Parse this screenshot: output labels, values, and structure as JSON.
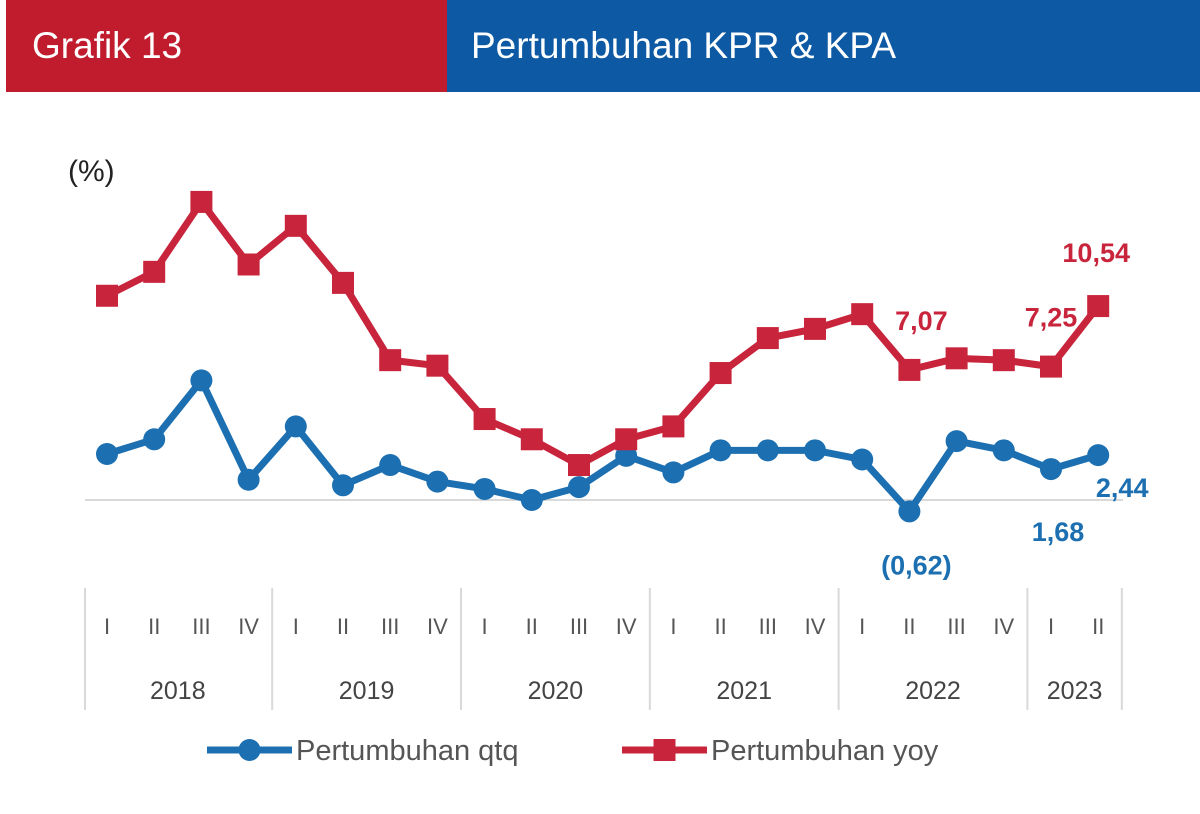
{
  "header": {
    "label": "Grafik 13",
    "title": "Pertumbuhan KPR & KPA"
  },
  "colors": {
    "header_red": "#c01c2e",
    "header_blue": "#0d59a3",
    "series_qtq": "#1c6fb0",
    "series_yoy": "#c8243c"
  },
  "chart_data": {
    "type": "line",
    "unit_label": "(%)",
    "quarters": [
      "I",
      "II",
      "III",
      "IV",
      "I",
      "II",
      "III",
      "IV",
      "I",
      "II",
      "III",
      "IV",
      "I",
      "II",
      "III",
      "IV",
      "I",
      "II",
      "III",
      "IV",
      "I",
      "II"
    ],
    "years": [
      {
        "label": "2018",
        "count": 4
      },
      {
        "label": "2019",
        "count": 4
      },
      {
        "label": "2020",
        "count": 4
      },
      {
        "label": "2021",
        "count": 4
      },
      {
        "label": "2022",
        "count": 4
      },
      {
        "label": "2023",
        "count": 2
      }
    ],
    "ylim": [
      -2,
      17
    ],
    "grid": false,
    "zero_line": true,
    "legend_position": "bottom",
    "series": [
      {
        "name": "Pertumbuhan qtq",
        "marker": "circle",
        "values": [
          2.5,
          3.3,
          6.5,
          1.1,
          4.0,
          0.8,
          1.9,
          1.0,
          0.6,
          0.0,
          0.7,
          2.4,
          1.5,
          2.7,
          2.7,
          2.7,
          2.2,
          -0.62,
          3.2,
          2.7,
          1.68,
          2.44
        ]
      },
      {
        "name": "Pertumbuhan yoy",
        "marker": "square",
        "values": [
          11.1,
          12.4,
          16.2,
          12.8,
          14.9,
          11.8,
          7.6,
          7.3,
          4.4,
          3.3,
          1.9,
          3.3,
          4.0,
          6.9,
          8.8,
          9.3,
          10.1,
          7.07,
          7.7,
          7.6,
          7.25,
          10.54
        ]
      }
    ],
    "annotations": [
      {
        "series": "Pertumbuhan qtq",
        "index": 17,
        "text": "(0,62)"
      },
      {
        "series": "Pertumbuhan qtq",
        "index": 20,
        "text": "1,68"
      },
      {
        "series": "Pertumbuhan qtq",
        "index": 21,
        "text": "2,44"
      },
      {
        "series": "Pertumbuhan yoy",
        "index": 17,
        "text": "7,07"
      },
      {
        "series": "Pertumbuhan yoy",
        "index": 20,
        "text": "7,25"
      },
      {
        "series": "Pertumbuhan yoy",
        "index": 21,
        "text": "10,54"
      }
    ]
  }
}
